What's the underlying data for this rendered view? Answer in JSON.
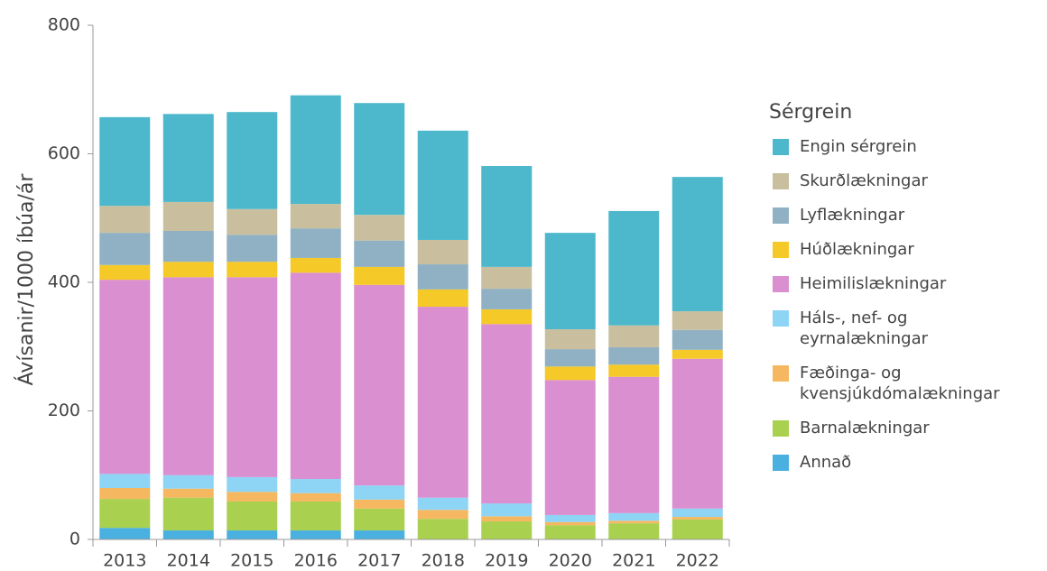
{
  "chart_data": {
    "type": "stacked_bar",
    "y_label": "Ávísanir/1000 íbúa/ár",
    "legend_title": "Sérgrein",
    "categories": [
      "2013",
      "2014",
      "2015",
      "2016",
      "2017",
      "2018",
      "2019",
      "2020",
      "2021",
      "2022"
    ],
    "ylim": [
      0,
      800
    ],
    "yticks": [
      0,
      200,
      400,
      600,
      800
    ],
    "series": [
      {
        "name": "Annað",
        "color": "#4ab0e0",
        "values": [
          18,
          14,
          14,
          14,
          14,
          0,
          0,
          0,
          0,
          0
        ]
      },
      {
        "name": "Barnalækningar",
        "color": "#a9d04f",
        "values": [
          45,
          51,
          45,
          45,
          34,
          32,
          28,
          22,
          25,
          31
        ]
      },
      {
        "name": "Fæðinga- og kvensjúkdómalækningar",
        "color": "#f5b860",
        "values": [
          17,
          14,
          15,
          13,
          14,
          14,
          8,
          5,
          4,
          4
        ]
      },
      {
        "name": "Háls-, nef- og eyrnalækningar",
        "color": "#8ed4f5",
        "values": [
          22,
          21,
          23,
          22,
          22,
          19,
          20,
          11,
          12,
          13
        ]
      },
      {
        "name": "Heimilislækningar",
        "color": "#d98fd0",
        "values": [
          302,
          308,
          311,
          321,
          312,
          297,
          279,
          210,
          212,
          233
        ]
      },
      {
        "name": "Húðlækningar",
        "color": "#f5c928",
        "values": [
          23,
          24,
          24,
          23,
          28,
          27,
          23,
          21,
          19,
          14
        ]
      },
      {
        "name": "Lyflækningar",
        "color": "#8fb1c3",
        "values": [
          50,
          48,
          42,
          46,
          41,
          39,
          32,
          27,
          27,
          31
        ]
      },
      {
        "name": "Skurðlækningar",
        "color": "#c9bf9f",
        "values": [
          42,
          45,
          40,
          38,
          40,
          38,
          34,
          31,
          34,
          29
        ]
      },
      {
        "name": "Engin sérgrein",
        "color": "#4db8cc",
        "values": [
          138,
          137,
          151,
          169,
          174,
          170,
          157,
          150,
          178,
          209
        ]
      }
    ]
  }
}
